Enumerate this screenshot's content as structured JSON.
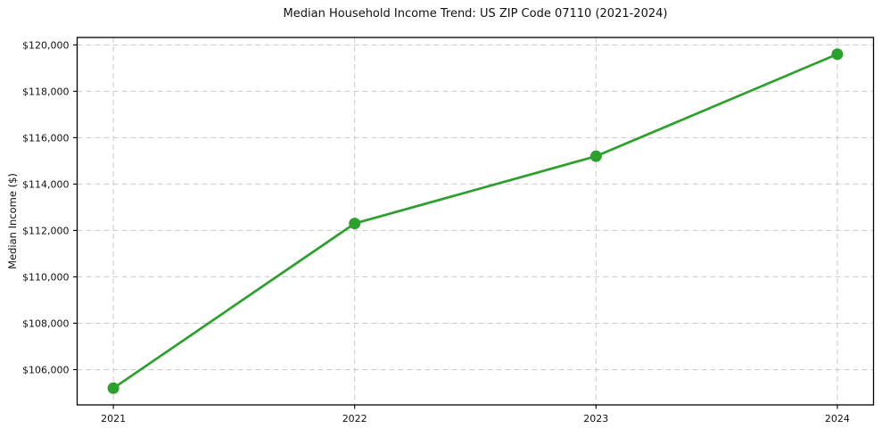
{
  "chart_data": {
    "type": "line",
    "title": "Median Household Income Trend: US ZIP Code 07110 (2021-2024)",
    "ylabel": "Median Income ($)",
    "xlabel": "",
    "x": [
      2021,
      2022,
      2023,
      2024
    ],
    "x_labels": [
      "2021",
      "2022",
      "2023",
      "2024"
    ],
    "values": [
      105200,
      112300,
      115200,
      119600
    ],
    "yticks": [
      106000,
      108000,
      110000,
      112000,
      114000,
      116000,
      118000,
      120000
    ],
    "ytick_labels": [
      "$106,000",
      "$108,000",
      "$110,000",
      "$112,000",
      "$114,000",
      "$116,000",
      "$118,000",
      "$120,000"
    ],
    "xlim": [
      2020.85,
      2024.15
    ],
    "ylim": [
      104480,
      120320
    ],
    "grid": true,
    "grid_style": "dashed",
    "legend": false,
    "line_color": "#2ca02c",
    "grid_color": "#c9c9c9",
    "spine_color": "#000000",
    "text_color": "#111111"
  }
}
